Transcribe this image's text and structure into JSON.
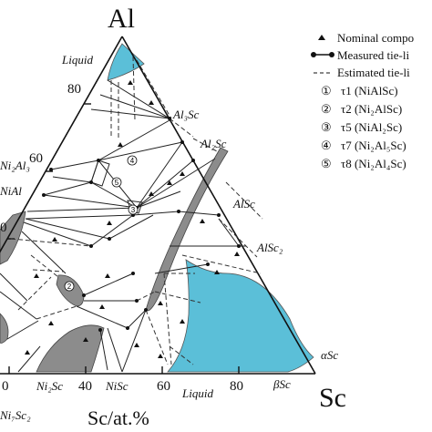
{
  "corners": {
    "top": "Al",
    "right": "Sc"
  },
  "axis_title": "Sc/at.%",
  "left_ticks": [
    "80",
    "60",
    "0"
  ],
  "bottom_ticks": [
    "0",
    "40",
    "60",
    "80"
  ],
  "phase_labels": {
    "liquid_top": "Liquid",
    "liquid_bottom": "Liquid",
    "al3sc": "Al₃Sc",
    "al2sc": "Al₂Sc",
    "alsc": "AlSc",
    "alsc2": "AlSc₂",
    "alpha_sc": "αSc",
    "beta_sc": "βSc",
    "nisc": "NiSc",
    "ni2sc": "Ni₂Sc",
    "ni7sc2": "Ni₇Sc₂",
    "ni2al3": "Ni₂Al₃",
    "nial": "NiAl"
  },
  "compound_markers": [
    "1",
    "2",
    "3",
    "4",
    "5"
  ],
  "legend": {
    "nominal": "Nominal compo",
    "measured": "Measured tie-li",
    "estimated": "Estimated tie-li",
    "items": [
      {
        "num": "①",
        "text": "τ1 (NiAlSc)"
      },
      {
        "num": "②",
        "text": "τ2 (Ni₂AlSc)"
      },
      {
        "num": "③",
        "text": "τ5 (NiAl₂Sc)"
      },
      {
        "num": "④",
        "text": "τ7 (Ni₂Al₅Sc)"
      },
      {
        "num": "⑤",
        "text": "τ8 (Ni₂Al₄Sc)"
      }
    ]
  }
}
